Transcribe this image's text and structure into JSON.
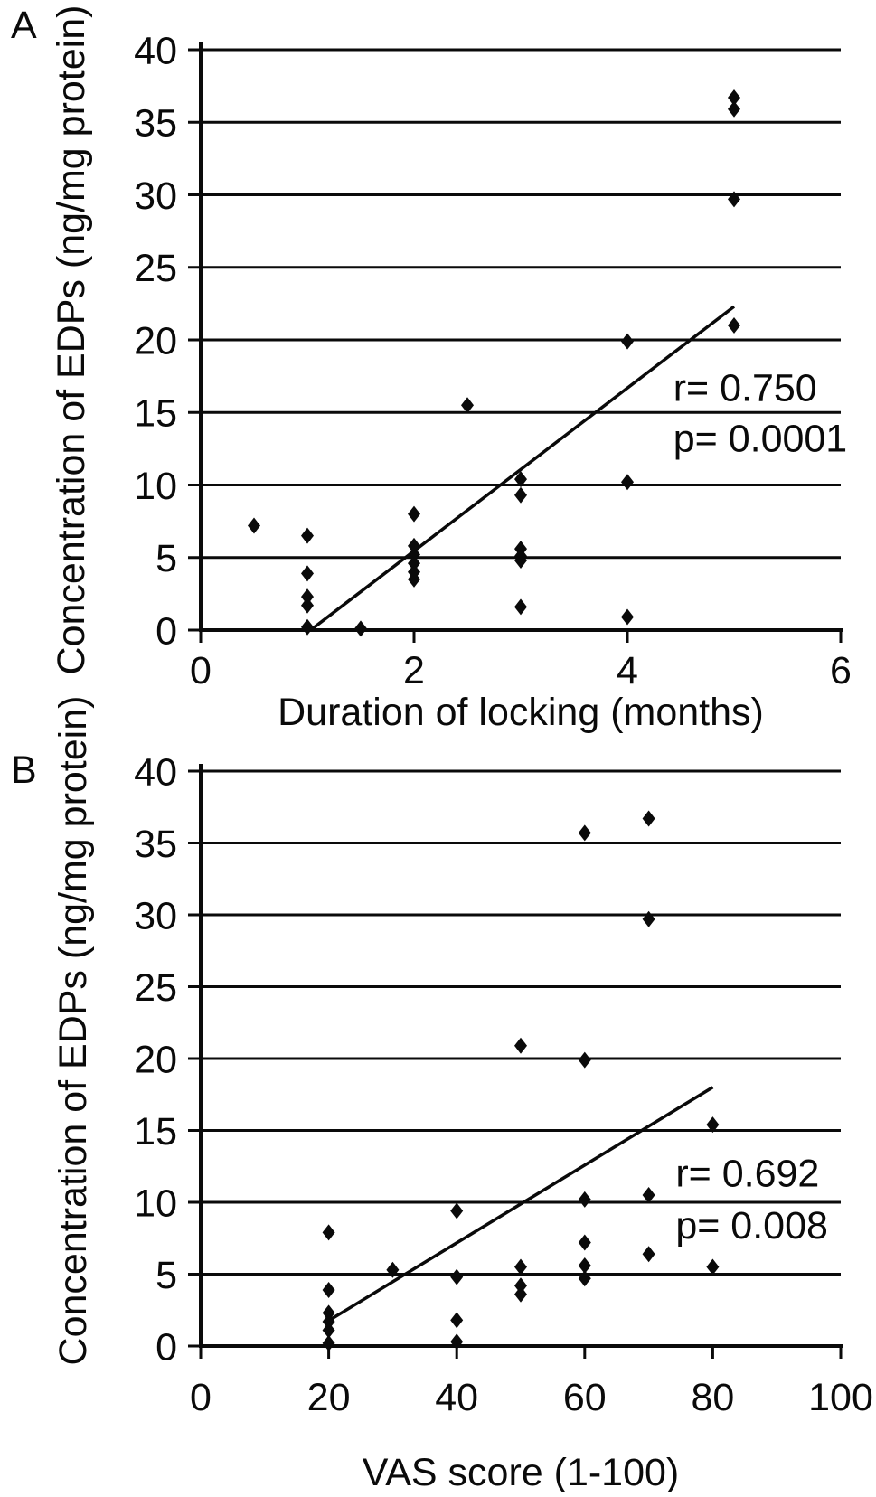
{
  "figure": {
    "background": "#ffffff",
    "ink_color": "#0a0a0a",
    "panel_letters": [
      "A",
      "B"
    ]
  },
  "chart_data": [
    {
      "panel_label": "A",
      "type": "scatter",
      "marker": "diamond",
      "marker_color": "#0a0a0a",
      "xlabel": "Duration of locking (months)",
      "ylabel": "Concentration of EDPs (ng/mg protein)",
      "xlim": [
        0,
        6
      ],
      "ylim": [
        0,
        40
      ],
      "xticks": [
        0,
        2,
        4,
        6
      ],
      "yticks": [
        0,
        5,
        10,
        15,
        20,
        25,
        30,
        35,
        40
      ],
      "grid": "horizontal",
      "legend": "none",
      "points": [
        [
          0.5,
          7.2
        ],
        [
          1,
          6.5
        ],
        [
          1,
          3.9
        ],
        [
          1,
          2.3
        ],
        [
          1,
          1.7
        ],
        [
          1,
          0.2
        ],
        [
          1.5,
          0.1
        ],
        [
          2,
          8.0
        ],
        [
          2,
          5.8
        ],
        [
          2,
          5.2
        ],
        [
          2,
          4.6
        ],
        [
          2,
          4.0
        ],
        [
          2,
          3.5
        ],
        [
          2.5,
          15.5
        ],
        [
          3,
          10.4
        ],
        [
          3,
          9.3
        ],
        [
          3,
          5.6
        ],
        [
          3,
          5.1
        ],
        [
          3,
          4.8
        ],
        [
          3,
          1.6
        ],
        [
          4,
          19.9
        ],
        [
          4,
          10.2
        ],
        [
          4,
          0.9
        ],
        [
          5,
          36.7
        ],
        [
          5,
          35.9
        ],
        [
          5,
          29.7
        ],
        [
          5,
          21.0
        ]
      ],
      "trendline": {
        "x1": 1.03,
        "y1": 0,
        "x2": 5.0,
        "y2": 22.3
      },
      "annotations": [
        {
          "text": "r= 0.750",
          "x": 4.43,
          "y": 15.8
        },
        {
          "text": "p= 0.0001",
          "x": 4.43,
          "y": 12.3
        }
      ],
      "stats": {
        "r": "0.750",
        "p": "0.0001"
      }
    },
    {
      "panel_label": "B",
      "type": "scatter",
      "marker": "diamond",
      "marker_color": "#0a0a0a",
      "xlabel": "VAS score (1-100)",
      "ylabel": "Concentration of EDPs (ng/mg protein)",
      "xlim": [
        0,
        100
      ],
      "ylim": [
        0,
        40
      ],
      "xticks": [
        0,
        20,
        40,
        60,
        80,
        100
      ],
      "yticks": [
        0,
        5,
        10,
        15,
        20,
        25,
        30,
        35,
        40
      ],
      "grid": "horizontal",
      "legend": "none",
      "points": [
        [
          20,
          7.9
        ],
        [
          20,
          3.9
        ],
        [
          20,
          2.3
        ],
        [
          20,
          1.7
        ],
        [
          20,
          1.1
        ],
        [
          20,
          0.2
        ],
        [
          30,
          5.3
        ],
        [
          40,
          9.4
        ],
        [
          40,
          4.8
        ],
        [
          40,
          1.8
        ],
        [
          40,
          0.3
        ],
        [
          50,
          20.9
        ],
        [
          50,
          5.5
        ],
        [
          50,
          4.2
        ],
        [
          50,
          3.6
        ],
        [
          60,
          35.7
        ],
        [
          60,
          19.9
        ],
        [
          60,
          10.2
        ],
        [
          60,
          7.2
        ],
        [
          60,
          5.6
        ],
        [
          60,
          4.7
        ],
        [
          70,
          36.7
        ],
        [
          70,
          29.7
        ],
        [
          70,
          10.5
        ],
        [
          70,
          6.4
        ],
        [
          80,
          15.4
        ],
        [
          80,
          5.5
        ]
      ],
      "trendline": {
        "x1": 20.5,
        "y1": 1.9,
        "x2": 80,
        "y2": 18.0
      },
      "annotations": [
        {
          "text": "r= 0.692",
          "x": 74.2,
          "y": 11.1
        },
        {
          "text": "p= 0.008",
          "x": 74.2,
          "y": 7.5
        }
      ],
      "stats": {
        "r": "0.692",
        "p": "0.008"
      }
    }
  ]
}
